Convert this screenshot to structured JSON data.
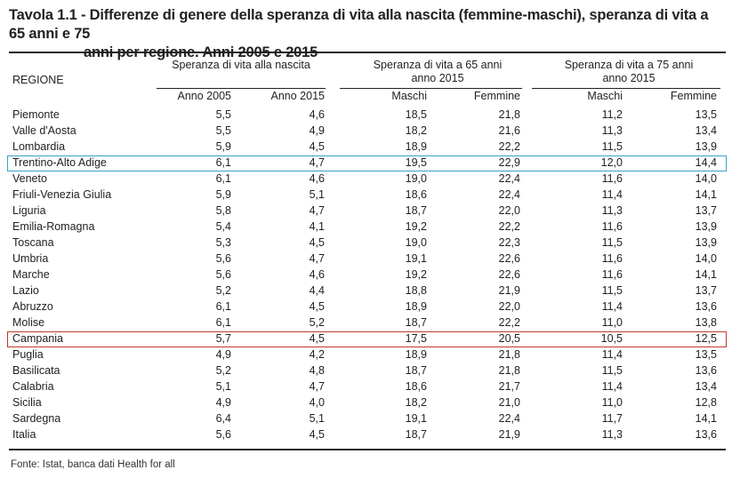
{
  "title": {
    "line1": "Tavola 1.1 - Differenze di genere della speranza di vita alla nascita (femmine-maschi), speranza di vita a 65 anni e 75",
    "line2": "anni per regione. Anni 2005 e 2015"
  },
  "header": {
    "region": "REGIONE",
    "group1": "Speranza di vita alla nascita",
    "group2_l1": "Speranza di vita a 65 anni",
    "group2_l2": "anno 2015",
    "group3_l1": "Speranza di vita a 75 anni",
    "group3_l2": "anno 2015",
    "cols": [
      "Anno 2005",
      "Anno 2015",
      "Maschi",
      "Femmine",
      "Maschi",
      "Femmine"
    ]
  },
  "rows": [
    {
      "name": "Piemonte",
      "v": [
        "5,5",
        "4,6",
        "18,5",
        "21,8",
        "11,2",
        "13,5"
      ]
    },
    {
      "name": "Valle d'Aosta",
      "v": [
        "5,5",
        "4,9",
        "18,2",
        "21,6",
        "11,3",
        "13,4"
      ]
    },
    {
      "name": "Lombardia",
      "v": [
        "5,9",
        "4,5",
        "18,9",
        "22,2",
        "11,5",
        "13,9"
      ]
    },
    {
      "name": "Trentino-Alto Adige",
      "v": [
        "6,1",
        "4,7",
        "19,5",
        "22,9",
        "12,0",
        "14,4"
      ]
    },
    {
      "name": "Veneto",
      "v": [
        "6,1",
        "4,6",
        "19,0",
        "22,4",
        "11,6",
        "14,0"
      ]
    },
    {
      "name": "Friuli-Venezia Giulia",
      "v": [
        "5,9",
        "5,1",
        "18,6",
        "22,4",
        "11,4",
        "14,1"
      ]
    },
    {
      "name": "Liguria",
      "v": [
        "5,8",
        "4,7",
        "18,7",
        "22,0",
        "11,3",
        "13,7"
      ]
    },
    {
      "name": "Emilia-Romagna",
      "v": [
        "5,4",
        "4,1",
        "19,2",
        "22,2",
        "11,6",
        "13,9"
      ]
    },
    {
      "name": "Toscana",
      "v": [
        "5,3",
        "4,5",
        "19,0",
        "22,3",
        "11,5",
        "13,9"
      ]
    },
    {
      "name": "Umbria",
      "v": [
        "5,6",
        "4,7",
        "19,1",
        "22,6",
        "11,6",
        "14,0"
      ]
    },
    {
      "name": "Marche",
      "v": [
        "5,6",
        "4,6",
        "19,2",
        "22,6",
        "11,6",
        "14,1"
      ]
    },
    {
      "name": "Lazio",
      "v": [
        "5,2",
        "4,4",
        "18,8",
        "21,9",
        "11,5",
        "13,7"
      ]
    },
    {
      "name": "Abruzzo",
      "v": [
        "6,1",
        "4,5",
        "18,9",
        "22,0",
        "11,4",
        "13,6"
      ]
    },
    {
      "name": "Molise",
      "v": [
        "6,1",
        "5,2",
        "18,7",
        "22,2",
        "11,0",
        "13,8"
      ]
    },
    {
      "name": "Campania",
      "v": [
        "5,7",
        "4,5",
        "17,5",
        "20,5",
        "10,5",
        "12,5"
      ]
    },
    {
      "name": "Puglia",
      "v": [
        "4,9",
        "4,2",
        "18,9",
        "21,8",
        "11,4",
        "13,5"
      ]
    },
    {
      "name": "Basilicata",
      "v": [
        "5,2",
        "4,8",
        "18,7",
        "21,8",
        "11,5",
        "13,6"
      ]
    },
    {
      "name": "Calabria",
      "v": [
        "5,1",
        "4,7",
        "18,6",
        "21,7",
        "11,4",
        "13,4"
      ]
    },
    {
      "name": "Sicilia",
      "v": [
        "4,9",
        "4,0",
        "18,2",
        "21,0",
        "11,0",
        "12,8"
      ]
    },
    {
      "name": "Sardegna",
      "v": [
        "6,4",
        "5,1",
        "19,1",
        "22,4",
        "11,7",
        "14,1"
      ]
    },
    {
      "name": "Italia",
      "v": [
        "5,6",
        "4,5",
        "18,7",
        "21,9",
        "11,3",
        "13,6"
      ]
    }
  ],
  "highlights": [
    {
      "region": "Trentino-Alto Adige",
      "color": "#3aa0c8"
    },
    {
      "region": "Campania",
      "color": "#c0392b"
    }
  ],
  "source": "Fonte: Istat, banca dati Health for all"
}
